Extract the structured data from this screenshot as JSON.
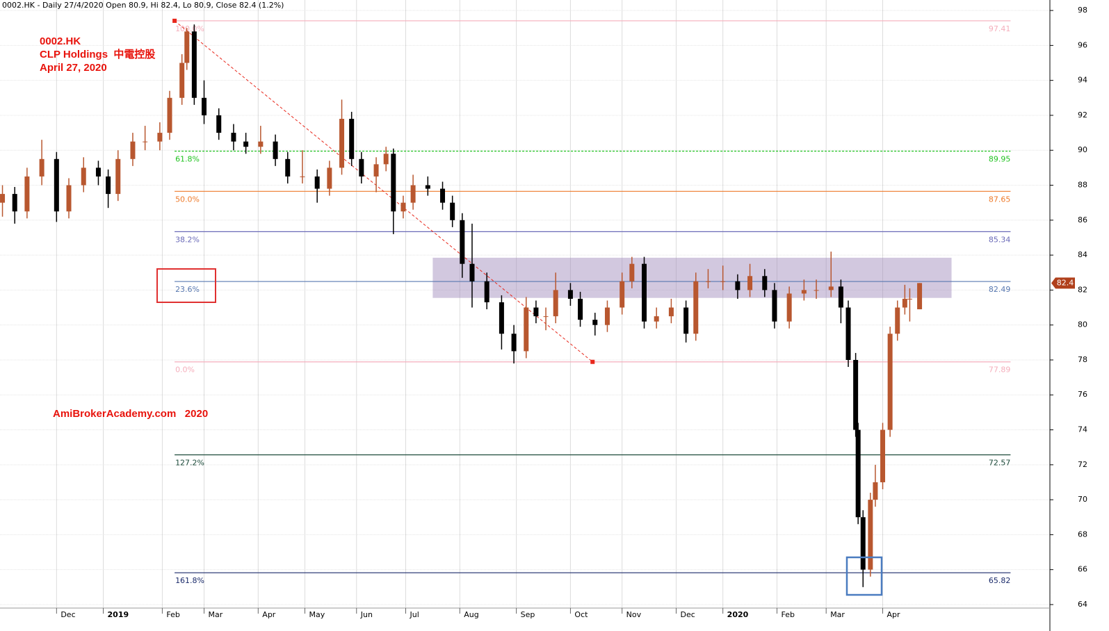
{
  "chart_data": {
    "type": "candlestick",
    "title": "0002.HK - Daily 27/4/2020 Open 80.9, Hi 82.4, Lo 80.9, Close 82.4 (1.2%)",
    "annotations": [
      "0002.HK",
      "CLP Holdings  中電控股",
      "April 27, 2020"
    ],
    "watermark": "AmiBrokerAcademy.com   2020",
    "up_color": "#b8572f",
    "down_color": "#000000",
    "ylim": [
      63.8,
      98.6
    ],
    "yticks": [
      64,
      66,
      68,
      70,
      72,
      74,
      76,
      78,
      80,
      82,
      84,
      86,
      88,
      90,
      92,
      94,
      96,
      98
    ],
    "xlim": [
      0,
      427
    ],
    "xticks": [
      {
        "value": 23,
        "label": "Dec"
      },
      {
        "value": 42,
        "label": "2019"
      },
      {
        "value": 66,
        "label": "Feb"
      },
      {
        "value": 83,
        "label": "Mar"
      },
      {
        "value": 105,
        "label": "Apr"
      },
      {
        "value": 124,
        "label": "May"
      },
      {
        "value": 145,
        "label": "Jun"
      },
      {
        "value": 165,
        "label": "Jul"
      },
      {
        "value": 187,
        "label": "Aug"
      },
      {
        "value": 210,
        "label": "Sep"
      },
      {
        "value": 232,
        "label": "Oct"
      },
      {
        "value": 253,
        "label": "Nov"
      },
      {
        "value": 275,
        "label": "Dec"
      },
      {
        "value": 294,
        "label": "2020"
      },
      {
        "value": 316,
        "label": "Feb"
      },
      {
        "value": 336,
        "label": "Mar"
      },
      {
        "value": 359,
        "label": "Apr"
      }
    ],
    "grid": true,
    "candles": [
      [
        1,
        87,
        88,
        86.2,
        87.5
      ],
      [
        6,
        87.5,
        87.9,
        85.8,
        86.5
      ],
      [
        11,
        86.5,
        89,
        86.1,
        88.5
      ],
      [
        17,
        88.5,
        90.6,
        88,
        89.5
      ],
      [
        23,
        89.5,
        89.9,
        85.9,
        86.5
      ],
      [
        28,
        86.5,
        88.4,
        86.1,
        88
      ],
      [
        34,
        88,
        89.6,
        87.6,
        89
      ],
      [
        40,
        89,
        89.4,
        88,
        88.5
      ],
      [
        44,
        88.5,
        88.9,
        86.7,
        87.5
      ],
      [
        48,
        87.5,
        90,
        87.1,
        89.5
      ],
      [
        54,
        89.5,
        91,
        89.1,
        90.5
      ],
      [
        59,
        90.5,
        91.4,
        90,
        90.5
      ],
      [
        65,
        90.5,
        91.6,
        90,
        91
      ],
      [
        69,
        91,
        93.4,
        90.6,
        93
      ],
      [
        74,
        93,
        95.5,
        92.6,
        95
      ],
      [
        76,
        95,
        97,
        94.6,
        96.8
      ],
      [
        79,
        96.8,
        97.2,
        92.6,
        93
      ],
      [
        83,
        93,
        94,
        91.5,
        92
      ],
      [
        89,
        92,
        92.4,
        90.6,
        91
      ],
      [
        95,
        91,
        91.5,
        90,
        90.5
      ],
      [
        100,
        90.5,
        91,
        89.8,
        90.2
      ],
      [
        106,
        90.2,
        91.4,
        89.8,
        90.5
      ],
      [
        112,
        90.5,
        90.9,
        89.1,
        89.5
      ],
      [
        117,
        89.5,
        89.9,
        88.1,
        88.5
      ],
      [
        123,
        88.5,
        90,
        88.1,
        88.5
      ],
      [
        129,
        88.5,
        88.9,
        87,
        87.8
      ],
      [
        134,
        87.8,
        89.4,
        87.4,
        89
      ],
      [
        139,
        89,
        92.9,
        88.6,
        91.8
      ],
      [
        143,
        91.8,
        92.2,
        89.1,
        89.5
      ],
      [
        147,
        89.5,
        89.9,
        88.1,
        88.5
      ],
      [
        153,
        88.5,
        89.6,
        87.6,
        89.2
      ],
      [
        157,
        89.2,
        90.2,
        88.8,
        89.8
      ],
      [
        160,
        89.8,
        90.1,
        85.2,
        86.5
      ],
      [
        164,
        86.5,
        87.4,
        86.1,
        87
      ],
      [
        168,
        87,
        88.6,
        86.6,
        88
      ],
      [
        174,
        88,
        88.5,
        87.4,
        87.8
      ],
      [
        180,
        87.8,
        88.2,
        86.6,
        87
      ],
      [
        184,
        87,
        87.4,
        85.6,
        86
      ],
      [
        188,
        86,
        86.4,
        82.7,
        83.5
      ],
      [
        192,
        83.5,
        85.8,
        81,
        82.5
      ],
      [
        198,
        82.5,
        83,
        80.9,
        81.3
      ],
      [
        204,
        81.3,
        81.7,
        78.6,
        79.5
      ],
      [
        209,
        79.5,
        80,
        77.8,
        78.5
      ],
      [
        214,
        78.5,
        81.6,
        78.1,
        81
      ],
      [
        218,
        81,
        81.4,
        80.1,
        80.5
      ],
      [
        222,
        80.5,
        81,
        79.7,
        80.5
      ],
      [
        226,
        80.5,
        83,
        80.1,
        82
      ],
      [
        232,
        82,
        82.4,
        81.1,
        81.5
      ],
      [
        236,
        81.5,
        81.9,
        79.9,
        80.3
      ],
      [
        242,
        80.3,
        80.7,
        79.4,
        80
      ],
      [
        247,
        80,
        81.4,
        79.6,
        81
      ],
      [
        253,
        81,
        83,
        80.6,
        82.5
      ],
      [
        257,
        82.5,
        83.9,
        82.1,
        83.5
      ],
      [
        262,
        83.5,
        83.9,
        79.8,
        80.2
      ],
      [
        267,
        80.2,
        81,
        79.8,
        80.5
      ],
      [
        273,
        80.5,
        81.5,
        80.1,
        81
      ],
      [
        279,
        81,
        81.4,
        79,
        79.5
      ],
      [
        283,
        79.5,
        83,
        79.1,
        82.5
      ],
      [
        288,
        82.5,
        83.2,
        82.1,
        82.5
      ],
      [
        294,
        82.5,
        83.4,
        82,
        82.5
      ],
      [
        300,
        82.5,
        82.9,
        81.5,
        82
      ],
      [
        305,
        82,
        83.5,
        81.6,
        82.8
      ],
      [
        311,
        82.8,
        83.2,
        81.6,
        82
      ],
      [
        315,
        82,
        82.4,
        79.8,
        80.2
      ],
      [
        321,
        80.2,
        82.2,
        79.8,
        81.8
      ],
      [
        327,
        81.8,
        82.6,
        81.4,
        82
      ],
      [
        332,
        82,
        82.6,
        81.5,
        82
      ],
      [
        338,
        82,
        84.2,
        81.6,
        82.2
      ],
      [
        342,
        82.2,
        82.6,
        80.1,
        81
      ],
      [
        345,
        81,
        81.4,
        77.6,
        78
      ],
      [
        348,
        78,
        78.4,
        73.6,
        74
      ],
      [
        349,
        74,
        74.4,
        68.6,
        69
      ],
      [
        351,
        69,
        69.4,
        65,
        66
      ],
      [
        354,
        66,
        70.4,
        65.6,
        70
      ],
      [
        356,
        70,
        72,
        69.6,
        71
      ],
      [
        359,
        71,
        74.4,
        70.6,
        74
      ],
      [
        362,
        74,
        79.9,
        73.6,
        79.5
      ],
      [
        365,
        79.5,
        81.4,
        79.1,
        81
      ],
      [
        368,
        81,
        82.3,
        80.6,
        81.5
      ],
      [
        370,
        81.5,
        82.1,
        80.2,
        81.5
      ],
      [
        374,
        80.9,
        82.4,
        80.9,
        82.4
      ]
    ],
    "fib_x": [
      71,
      411
    ],
    "fib_levels": [
      {
        "label": "100.0%",
        "value": 97.41,
        "color": "#f5aebb"
      },
      {
        "label": "61.8%",
        "value": 89.95,
        "color": "#22c322",
        "dashed": true
      },
      {
        "label": "50.0%",
        "value": 87.65,
        "color": "#ee7a2a"
      },
      {
        "label": "38.2%",
        "value": 85.34,
        "color": "#6a6ab8"
      },
      {
        "label": "23.6%",
        "value": 82.49,
        "color": "#5878b0"
      },
      {
        "label": "0.0%",
        "value": 77.89,
        "color": "#f5aebb"
      },
      {
        "label": "127.2%",
        "value": 72.57,
        "color": "#1c4a3a"
      },
      {
        "label": "161.8%",
        "value": 65.82,
        "color": "#1a2a6a"
      }
    ],
    "trendline": {
      "x": [
        71,
        241
      ],
      "values": [
        97.41,
        77.89
      ],
      "color": "#e8281c"
    },
    "zone": {
      "x": [
        176,
        387
      ],
      "values": [
        81.55,
        83.85
      ],
      "color": "#9c84b8"
    }
  }
}
